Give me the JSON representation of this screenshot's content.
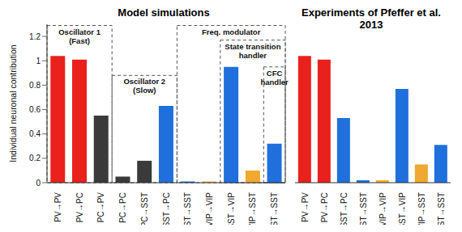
{
  "chart_data": [
    {
      "type": "bar",
      "title": "Model simulations",
      "y_label": "Individual neuronal contribution",
      "categories": [
        "PV→PV",
        "PV→PC",
        "PC→PV",
        "PC→PC",
        "PC→SST",
        "SST→PC",
        "SST→SST",
        "VIP→VIP",
        "SST→VIP",
        "VIP→SST",
        "SST→SST"
      ],
      "values": [
        1.04,
        1.01,
        0.55,
        0.05,
        0.18,
        0.63,
        0.01,
        0.01,
        0.95,
        0.1,
        0.32
      ],
      "colors": [
        "#e8211d",
        "#e8211d",
        "#3a3a3a",
        "#3a3a3a",
        "#3a3a3a",
        "#1f6fdc",
        "#1f6fdc",
        "#f0a830",
        "#1f6fdc",
        "#f0a830",
        "#1f6fdc"
      ],
      "ylim": [
        0,
        1.3
      ],
      "yticks": [
        0,
        0.2,
        0.4,
        0.6,
        0.8,
        1,
        1.2
      ],
      "annotations": [
        [
          "Oscillator 1",
          "(Fast)"
        ],
        [
          "Oscillator 2",
          "(Slow)"
        ],
        [
          "Freq. modulator"
        ],
        [
          "State transition",
          "handler"
        ],
        [
          "CFC",
          "handler"
        ]
      ]
    },
    {
      "type": "bar",
      "title": "Experiments of Pfeffer et al. 2013",
      "categories": [
        "PV→PV",
        "PV→PC",
        "SST→PC",
        "SST→SST",
        "VIP→VIP",
        "SST→VIP",
        "VIP→SST",
        "SST→SST"
      ],
      "values": [
        1.04,
        1.01,
        0.53,
        0.02,
        0.02,
        0.77,
        0.15,
        0.31
      ],
      "colors": [
        "#e8211d",
        "#e8211d",
        "#1f6fdc",
        "#1f6fdc",
        "#f0a830",
        "#1f6fdc",
        "#f0a830",
        "#1f6fdc"
      ],
      "ylim": [
        0,
        1.3
      ],
      "tick_labels": "x"
    }
  ]
}
